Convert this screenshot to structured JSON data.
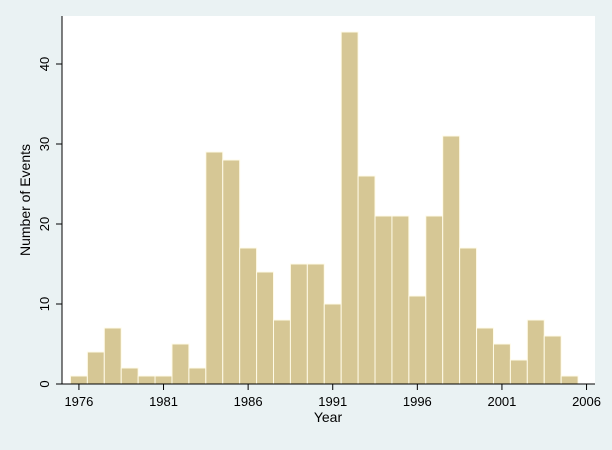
{
  "chart_data": {
    "type": "bar",
    "xlabel": "Year",
    "ylabel": "Number of Events",
    "xlim": [
      1975,
      2006.5
    ],
    "ylim": [
      0,
      46
    ],
    "bin_width": 1,
    "x_ticks": [
      1976,
      1981,
      1986,
      1991,
      1996,
      2001,
      2006
    ],
    "y_ticks": [
      0,
      10,
      20,
      30,
      40
    ],
    "grid": false,
    "legend": "none",
    "bar_color": "#d6c795",
    "bar_edge_color": "#fffbe8",
    "plot_background": "#ffffff",
    "outer_background": "#eaf2f3",
    "years": [
      1976,
      1977,
      1978,
      1979,
      1980,
      1981,
      1982,
      1983,
      1984,
      1985,
      1986,
      1987,
      1988,
      1989,
      1990,
      1991,
      1992,
      1993,
      1994,
      1995,
      1996,
      1997,
      1998,
      1999,
      2000,
      2001,
      2002,
      2003,
      2004,
      2005
    ],
    "values": [
      1,
      4,
      7,
      2,
      1,
      1,
      5,
      2,
      29,
      28,
      17,
      14,
      8,
      15,
      15,
      10,
      44,
      26,
      21,
      21,
      11,
      21,
      31,
      17,
      7,
      5,
      3,
      8,
      6,
      1
    ]
  }
}
